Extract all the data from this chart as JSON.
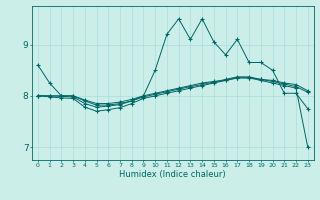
{
  "title": "",
  "xlabel": "Humidex (Indice chaleur)",
  "bg_color": "#cceee8",
  "grid_color": "#aadddd",
  "line_color": "#006666",
  "xlim": [
    -0.5,
    23.5
  ],
  "ylim": [
    6.75,
    9.75
  ],
  "yticks": [
    7,
    8,
    9
  ],
  "xticks": [
    0,
    1,
    2,
    3,
    4,
    5,
    6,
    7,
    8,
    9,
    10,
    11,
    12,
    13,
    14,
    15,
    16,
    17,
    18,
    19,
    20,
    21,
    22,
    23
  ],
  "series1": [
    8.6,
    8.25,
    8.0,
    8.0,
    7.9,
    7.82,
    7.82,
    7.85,
    7.9,
    8.0,
    8.5,
    9.2,
    9.5,
    9.1,
    9.5,
    9.05,
    8.8,
    9.1,
    8.65,
    8.65,
    8.5,
    8.05,
    8.05,
    7.75
  ],
  "series2": [
    8.0,
    8.0,
    8.0,
    8.0,
    7.92,
    7.85,
    7.85,
    7.88,
    7.93,
    8.0,
    8.05,
    8.1,
    8.15,
    8.2,
    8.25,
    8.28,
    8.3,
    8.35,
    8.35,
    8.32,
    8.3,
    8.25,
    8.22,
    8.1
  ],
  "series3": [
    8.0,
    8.0,
    7.99,
    7.98,
    7.85,
    7.78,
    7.8,
    7.83,
    7.9,
    7.98,
    8.03,
    8.08,
    8.13,
    8.18,
    8.22,
    8.27,
    8.32,
    8.37,
    8.37,
    8.32,
    8.28,
    8.23,
    8.18,
    8.07
  ],
  "series4": [
    8.0,
    7.98,
    7.96,
    7.95,
    7.78,
    7.7,
    7.73,
    7.77,
    7.85,
    7.95,
    8.0,
    8.05,
    8.1,
    8.15,
    8.2,
    8.25,
    8.3,
    8.35,
    8.35,
    8.3,
    8.25,
    8.2,
    8.15,
    7.0
  ]
}
